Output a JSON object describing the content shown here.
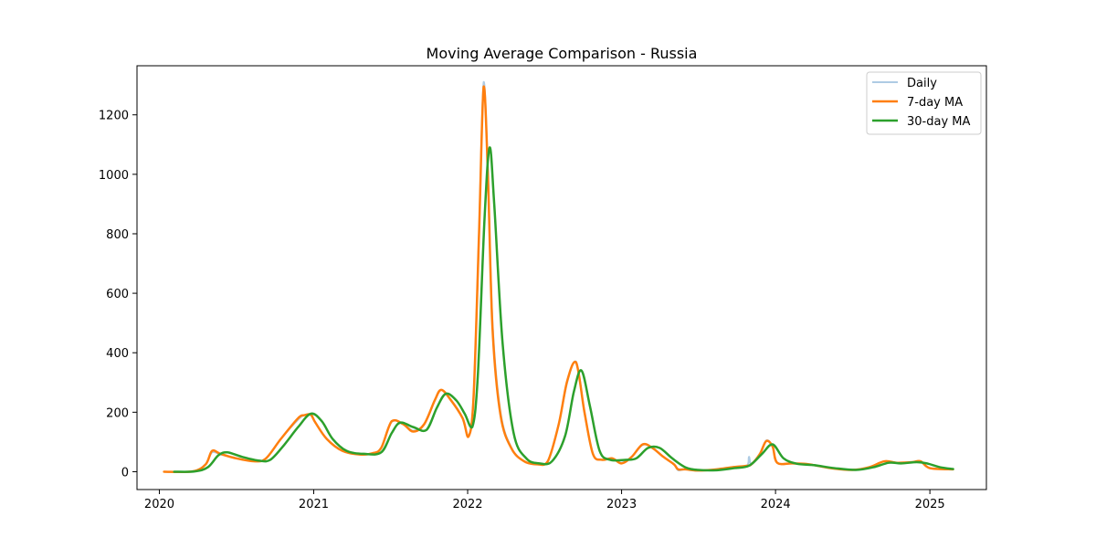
{
  "chart_data": {
    "type": "line",
    "title": "Moving Average Comparison - Russia",
    "xlabel": "",
    "ylabel": "",
    "x_ticks": [
      "2020",
      "2021",
      "2022",
      "2023",
      "2024",
      "2025"
    ],
    "y_ticks": [
      "0",
      "200",
      "400",
      "600",
      "800",
      "1000",
      "1200"
    ],
    "xlim": [
      "2019-11-09",
      "2025-05-15"
    ],
    "ylim": [
      -60,
      1365
    ],
    "grid": false,
    "legend_position": "top-right",
    "series": [
      {
        "name": "Daily",
        "color": "#aecbe4",
        "points": [
          [
            "2020-01-12",
            0
          ],
          [
            "2020-03-20",
            1
          ],
          [
            "2020-04-20",
            25
          ],
          [
            "2020-05-05",
            65
          ],
          [
            "2020-05-25",
            58
          ],
          [
            "2020-07-01",
            45
          ],
          [
            "2020-08-15",
            35
          ],
          [
            "2020-09-10",
            45
          ],
          [
            "2020-10-15",
            110
          ],
          [
            "2020-11-25",
            175
          ],
          [
            "2020-12-10",
            190
          ],
          [
            "2020-12-25",
            190
          ],
          [
            "2021-01-05",
            165
          ],
          [
            "2021-02-01",
            110
          ],
          [
            "2021-03-10",
            70
          ],
          [
            "2021-04-20",
            58
          ],
          [
            "2021-05-20",
            62
          ],
          [
            "2021-06-10",
            80
          ],
          [
            "2021-07-05",
            168
          ],
          [
            "2021-08-01",
            162
          ],
          [
            "2021-08-25",
            138
          ],
          [
            "2021-09-20",
            160
          ],
          [
            "2021-10-15",
            240
          ],
          [
            "2021-10-30",
            275
          ],
          [
            "2021-11-20",
            245
          ],
          [
            "2021-12-20",
            180
          ],
          [
            "2022-01-03",
            120
          ],
          [
            "2022-01-15",
            250
          ],
          [
            "2022-01-28",
            800
          ],
          [
            "2022-02-08",
            1310
          ],
          [
            "2022-02-18",
            1000
          ],
          [
            "2022-03-01",
            500
          ],
          [
            "2022-03-20",
            200
          ],
          [
            "2022-04-15",
            80
          ],
          [
            "2022-05-15",
            35
          ],
          [
            "2022-06-15",
            25
          ],
          [
            "2022-07-10",
            35
          ],
          [
            "2022-08-05",
            160
          ],
          [
            "2022-08-25",
            300
          ],
          [
            "2022-09-15",
            370
          ],
          [
            "2022-10-05",
            200
          ],
          [
            "2022-10-25",
            60
          ],
          [
            "2022-11-15",
            40
          ],
          [
            "2022-12-10",
            45
          ],
          [
            "2023-01-01",
            30
          ],
          [
            "2023-01-25",
            50
          ],
          [
            "2023-02-20",
            90
          ],
          [
            "2023-03-15",
            80
          ],
          [
            "2023-04-10",
            50
          ],
          [
            "2023-05-05",
            25
          ],
          [
            "2023-05-15",
            5
          ],
          [
            "2023-06-01",
            8
          ],
          [
            "2023-07-01",
            4
          ],
          [
            "2023-08-15",
            8
          ],
          [
            "2023-09-20",
            15
          ],
          [
            "2023-10-25",
            20
          ],
          [
            "2023-10-30",
            50
          ],
          [
            "2023-11-05",
            25
          ],
          [
            "2023-11-25",
            60
          ],
          [
            "2023-12-10",
            105
          ],
          [
            "2023-12-25",
            85
          ],
          [
            "2024-01-05",
            30
          ],
          [
            "2024-02-10",
            28
          ],
          [
            "2024-03-20",
            25
          ],
          [
            "2024-05-10",
            12
          ],
          [
            "2024-07-01",
            6
          ],
          [
            "2024-08-10",
            15
          ],
          [
            "2024-09-15",
            35
          ],
          [
            "2024-10-15",
            30
          ],
          [
            "2024-11-20",
            32
          ],
          [
            "2024-12-10",
            35
          ],
          [
            "2025-01-01",
            12
          ],
          [
            "2025-02-25",
            8
          ]
        ]
      },
      {
        "name": "7-day MA",
        "color": "#ff7f0e",
        "points": [
          [
            "2020-01-12",
            0
          ],
          [
            "2020-03-20",
            1
          ],
          [
            "2020-04-20",
            25
          ],
          [
            "2020-05-05",
            70
          ],
          [
            "2020-05-25",
            60
          ],
          [
            "2020-07-01",
            45
          ],
          [
            "2020-08-15",
            35
          ],
          [
            "2020-09-10",
            45
          ],
          [
            "2020-10-15",
            110
          ],
          [
            "2020-11-25",
            180
          ],
          [
            "2020-12-10",
            190
          ],
          [
            "2020-12-25",
            192
          ],
          [
            "2021-01-05",
            165
          ],
          [
            "2021-02-01",
            110
          ],
          [
            "2021-03-10",
            70
          ],
          [
            "2021-04-20",
            58
          ],
          [
            "2021-05-20",
            62
          ],
          [
            "2021-06-10",
            80
          ],
          [
            "2021-07-05",
            170
          ],
          [
            "2021-08-01",
            160
          ],
          [
            "2021-08-25",
            135
          ],
          [
            "2021-09-20",
            160
          ],
          [
            "2021-10-15",
            240
          ],
          [
            "2021-10-30",
            275
          ],
          [
            "2021-11-20",
            245
          ],
          [
            "2021-12-20",
            180
          ],
          [
            "2022-01-03",
            118
          ],
          [
            "2022-01-15",
            250
          ],
          [
            "2022-01-28",
            800
          ],
          [
            "2022-02-08",
            1295
          ],
          [
            "2022-02-18",
            1000
          ],
          [
            "2022-03-01",
            480
          ],
          [
            "2022-03-20",
            190
          ],
          [
            "2022-04-15",
            78
          ],
          [
            "2022-05-15",
            35
          ],
          [
            "2022-06-15",
            25
          ],
          [
            "2022-07-10",
            35
          ],
          [
            "2022-08-05",
            160
          ],
          [
            "2022-08-25",
            305
          ],
          [
            "2022-09-15",
            368
          ],
          [
            "2022-10-05",
            200
          ],
          [
            "2022-10-25",
            60
          ],
          [
            "2022-11-15",
            40
          ],
          [
            "2022-12-10",
            45
          ],
          [
            "2023-01-01",
            28
          ],
          [
            "2023-01-25",
            50
          ],
          [
            "2023-02-20",
            92
          ],
          [
            "2023-03-15",
            80
          ],
          [
            "2023-04-10",
            50
          ],
          [
            "2023-05-05",
            25
          ],
          [
            "2023-05-15",
            8
          ],
          [
            "2023-06-01",
            8
          ],
          [
            "2023-07-01",
            4
          ],
          [
            "2023-08-15",
            8
          ],
          [
            "2023-09-20",
            15
          ],
          [
            "2023-10-25",
            20
          ],
          [
            "2023-11-05",
            25
          ],
          [
            "2023-11-25",
            60
          ],
          [
            "2023-12-10",
            103
          ],
          [
            "2023-12-25",
            85
          ],
          [
            "2024-01-05",
            30
          ],
          [
            "2024-02-10",
            28
          ],
          [
            "2024-03-20",
            25
          ],
          [
            "2024-05-10",
            12
          ],
          [
            "2024-07-01",
            6
          ],
          [
            "2024-08-10",
            15
          ],
          [
            "2024-09-15",
            35
          ],
          [
            "2024-10-15",
            30
          ],
          [
            "2024-11-20",
            32
          ],
          [
            "2024-12-10",
            35
          ],
          [
            "2025-01-01",
            12
          ],
          [
            "2025-02-25",
            8
          ]
        ]
      },
      {
        "name": "30-day MA",
        "color": "#2ca02c",
        "points": [
          [
            "2020-02-05",
            0
          ],
          [
            "2020-03-25",
            1
          ],
          [
            "2020-04-25",
            15
          ],
          [
            "2020-05-20",
            55
          ],
          [
            "2020-06-10",
            65
          ],
          [
            "2020-07-15",
            50
          ],
          [
            "2020-08-25",
            37
          ],
          [
            "2020-09-20",
            40
          ],
          [
            "2020-10-20",
            85
          ],
          [
            "2020-11-25",
            150
          ],
          [
            "2020-12-25",
            195
          ],
          [
            "2021-01-20",
            170
          ],
          [
            "2021-02-15",
            110
          ],
          [
            "2021-03-20",
            70
          ],
          [
            "2021-04-30",
            60
          ],
          [
            "2021-06-10",
            65
          ],
          [
            "2021-07-05",
            130
          ],
          [
            "2021-07-25",
            165
          ],
          [
            "2021-08-25",
            150
          ],
          [
            "2021-09-25",
            140
          ],
          [
            "2021-10-20",
            215
          ],
          [
            "2021-11-10",
            262
          ],
          [
            "2021-12-05",
            240
          ],
          [
            "2021-12-25",
            195
          ],
          [
            "2022-01-12",
            150
          ],
          [
            "2022-01-25",
            320
          ],
          [
            "2022-02-10",
            850
          ],
          [
            "2022-02-22",
            1090
          ],
          [
            "2022-03-05",
            900
          ],
          [
            "2022-03-25",
            430
          ],
          [
            "2022-04-20",
            130
          ],
          [
            "2022-05-20",
            45
          ],
          [
            "2022-06-20",
            28
          ],
          [
            "2022-07-20",
            35
          ],
          [
            "2022-08-20",
            120
          ],
          [
            "2022-09-10",
            270
          ],
          [
            "2022-09-28",
            340
          ],
          [
            "2022-10-18",
            220
          ],
          [
            "2022-11-10",
            70
          ],
          [
            "2022-12-05",
            40
          ],
          [
            "2023-01-10",
            40
          ],
          [
            "2023-02-05",
            45
          ],
          [
            "2023-03-05",
            80
          ],
          [
            "2023-04-01",
            80
          ],
          [
            "2023-05-01",
            45
          ],
          [
            "2023-06-01",
            15
          ],
          [
            "2023-07-01",
            6
          ],
          [
            "2023-08-15",
            5
          ],
          [
            "2023-09-25",
            12
          ],
          [
            "2023-10-30",
            20
          ],
          [
            "2023-11-30",
            60
          ],
          [
            "2023-12-25",
            92
          ],
          [
            "2024-01-20",
            45
          ],
          [
            "2024-02-20",
            27
          ],
          [
            "2024-04-01",
            22
          ],
          [
            "2024-05-20",
            12
          ],
          [
            "2024-07-10",
            6
          ],
          [
            "2024-08-20",
            15
          ],
          [
            "2024-09-25",
            30
          ],
          [
            "2024-10-25",
            28
          ],
          [
            "2024-12-01",
            32
          ],
          [
            "2024-12-25",
            28
          ],
          [
            "2025-01-25",
            15
          ],
          [
            "2025-02-25",
            9
          ]
        ]
      }
    ]
  }
}
